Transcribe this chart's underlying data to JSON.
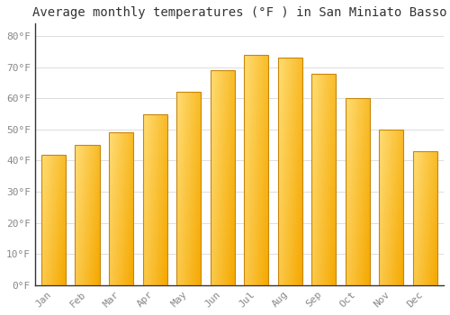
{
  "title": "Average monthly temperatures (°F ) in San Miniato Basso",
  "months": [
    "Jan",
    "Feb",
    "Mar",
    "Apr",
    "May",
    "Jun",
    "Jul",
    "Aug",
    "Sep",
    "Oct",
    "Nov",
    "Dec"
  ],
  "values": [
    42,
    45,
    49,
    55,
    62,
    69,
    74,
    73,
    68,
    60,
    50,
    43
  ],
  "bar_color_bottom": "#F5A800",
  "bar_color_top": "#FFD966",
  "bar_color_left": "#FFE080",
  "bar_edge_color": "#C8860A",
  "background_color": "#FFFFFF",
  "ylim": [
    0,
    84
  ],
  "ytick_step": 10,
  "ylabel_suffix": "°F",
  "grid_color": "#DDDDDD",
  "title_fontsize": 10,
  "tick_fontsize": 8,
  "tick_color": "#888888",
  "axis_color": "#333333",
  "font_family": "monospace"
}
